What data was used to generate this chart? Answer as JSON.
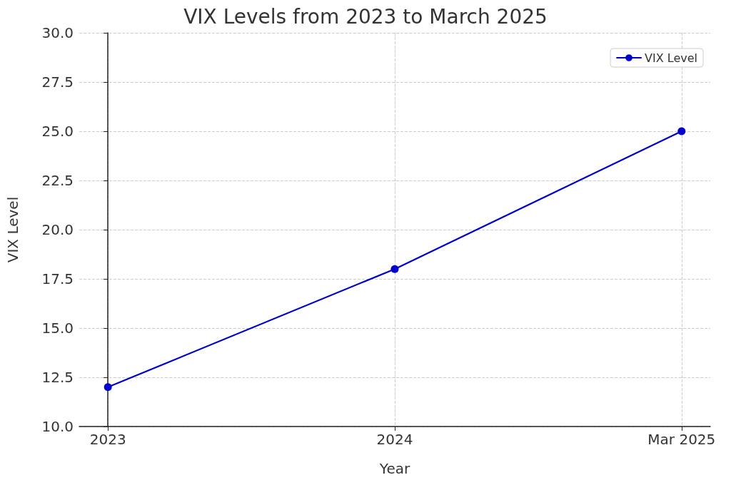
{
  "chart_data": {
    "type": "line",
    "title": "VIX Levels from 2023 to March 2025",
    "xlabel": "Year",
    "ylabel": "VIX Level",
    "categories": [
      "2023",
      "2024",
      "Mar 2025"
    ],
    "series": [
      {
        "name": "VIX Level",
        "color": "#0000cc",
        "values": [
          12,
          18,
          25
        ]
      }
    ],
    "ylim": [
      10,
      30
    ],
    "yticks": [
      {
        "value": 10,
        "label": "10.0"
      },
      {
        "value": 12.5,
        "label": "12.5"
      },
      {
        "value": 15,
        "label": "15.0"
      },
      {
        "value": 17.5,
        "label": "17.5"
      },
      {
        "value": 20,
        "label": "20.0"
      },
      {
        "value": 22.5,
        "label": "22.5"
      },
      {
        "value": 25,
        "label": "25.0"
      },
      {
        "value": 27.5,
        "label": "27.5"
      },
      {
        "value": 30,
        "label": "30.0"
      }
    ],
    "grid": true,
    "legend": "top right",
    "marker": "circle",
    "line_style": "solid"
  }
}
